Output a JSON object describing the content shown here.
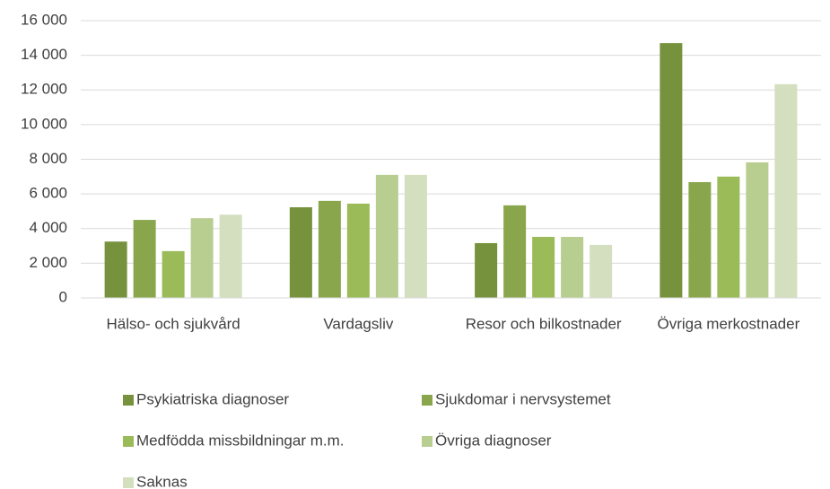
{
  "chart_data": {
    "type": "bar",
    "categories": [
      "Hälso- och sjukvård",
      "Vardagsliv",
      "Resor och bilkostnader",
      "Övriga merkostnader"
    ],
    "series": [
      {
        "name": "Psykiatriska diagnoser",
        "color": "#76923c",
        "values": [
          3250,
          5230,
          3160,
          14700
        ]
      },
      {
        "name": "Sjukdomar i nervsystemet",
        "color": "#8aa64c",
        "values": [
          4500,
          5600,
          5340,
          6680
        ]
      },
      {
        "name": "Medfödda missbildningar m.m.",
        "color": "#9bbb59",
        "values": [
          2700,
          5440,
          3520,
          7000
        ]
      },
      {
        "name": "Övriga diagnoser",
        "color": "#b8cd90",
        "values": [
          4600,
          7100,
          3520,
          7820
        ]
      },
      {
        "name": "Saknas",
        "color": "#d3dfbe",
        "values": [
          4800,
          7100,
          3060,
          12330
        ]
      }
    ],
    "ylim": [
      0,
      16000
    ],
    "yticks": [
      0,
      {
        "value": 2000,
        "label": "2 000"
      },
      {
        "value": 4000,
        "label": "4 000"
      },
      {
        "value": 6000,
        "label": "6 000"
      },
      {
        "value": 8000,
        "label": "8 000"
      },
      {
        "value": 10000,
        "label": "10 000"
      },
      {
        "value": 12000,
        "label": "12 000"
      },
      {
        "value": 14000,
        "label": "14 000"
      },
      {
        "value": 16000,
        "label": "16 000"
      }
    ],
    "grid": true
  }
}
